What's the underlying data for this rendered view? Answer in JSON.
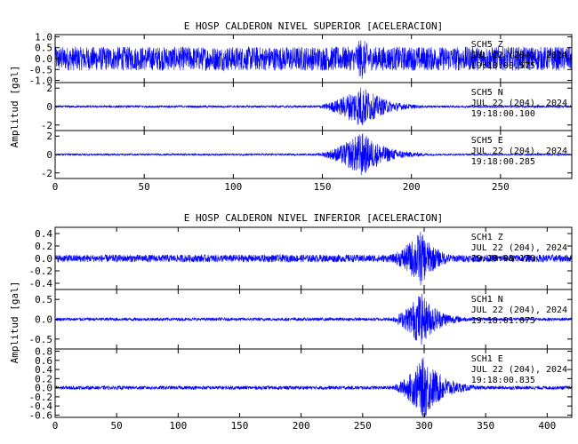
{
  "chart_data": [
    {
      "type": "line",
      "title": "E HOSP CALDERON NIVEL SUPERIOR [ACELERACION]",
      "ylabel": "Amplitud [gal]",
      "xlim": [
        0,
        290
      ],
      "x_ticks": [
        0,
        50,
        100,
        150,
        200,
        250
      ],
      "trace_color": "#0000ff",
      "panels": [
        {
          "channel": "SCH5  Z",
          "date": "JUL 22 (204), 2024",
          "time": "19:18:00.575",
          "ylim": [
            -1.1,
            1.1
          ],
          "y_ticks": [
            "1.0",
            "0.5",
            "0.0",
            "-0.5",
            "-1.0"
          ],
          "y_tick_values": [
            1.0,
            0.5,
            0.0,
            -0.5,
            -1.0
          ],
          "noise_amp": 0.55,
          "burst": {
            "start": 155,
            "peak": 172,
            "end": 230,
            "peak_amp": 1.0
          }
        },
        {
          "channel": "SCH5  N",
          "date": "JUL 22 (204), 2024",
          "time": "19:18:00.100",
          "ylim": [
            -2.6,
            2.6
          ],
          "y_ticks": [
            "2",
            "0",
            "-2"
          ],
          "y_tick_values": [
            2,
            0,
            -2
          ],
          "noise_amp": 0.12,
          "burst": {
            "start": 140,
            "peak": 172,
            "end": 250,
            "peak_amp": 2.4
          }
        },
        {
          "channel": "SCH5  E",
          "date": "JUL 22 (204), 2024",
          "time": "19:18:00.285",
          "ylim": [
            -2.6,
            2.6
          ],
          "y_ticks": [
            "2",
            "0",
            "-2"
          ],
          "y_tick_values": [
            2,
            0,
            -2
          ],
          "noise_amp": 0.1,
          "burst": {
            "start": 140,
            "peak": 172,
            "end": 255,
            "peak_amp": 2.5
          }
        }
      ]
    },
    {
      "type": "line",
      "title": "E HOSP CALDERON NIVEL INFERIOR [ACELERACION]",
      "ylabel": "Amplitud [gal]",
      "xlim": [
        0,
        420
      ],
      "x_ticks": [
        0,
        50,
        100,
        150,
        200,
        250,
        300,
        350,
        400
      ],
      "trace_color": "#0000ff",
      "panels": [
        {
          "channel": "SCH1  Z",
          "date": "JUL 22 (204), 2024",
          "time": "19:18:00.170",
          "ylim": [
            -0.5,
            0.5
          ],
          "y_ticks": [
            "0.4",
            "0.2",
            "0.0",
            "-0.2",
            "-0.4"
          ],
          "y_tick_values": [
            0.4,
            0.2,
            0.0,
            -0.2,
            -0.4
          ],
          "noise_amp": 0.06,
          "burst": {
            "start": 260,
            "peak": 297,
            "end": 380,
            "peak_amp": 0.45
          }
        },
        {
          "channel": "SCH1  N",
          "date": "JUL 22 (204), 2024",
          "time": "19:18:01.075",
          "ylim": [
            -0.75,
            0.75
          ],
          "y_ticks": [
            "0.5",
            "0.0",
            "-0.5"
          ],
          "y_tick_values": [
            0.5,
            0.0,
            -0.5
          ],
          "noise_amp": 0.04,
          "burst": {
            "start": 265,
            "peak": 297,
            "end": 390,
            "peak_amp": 0.7
          }
        },
        {
          "channel": "SCH1  E",
          "date": "JUL 22 (204), 2024",
          "time": "19:18:00.835",
          "ylim": [
            -0.65,
            0.85
          ],
          "y_ticks": [
            "0.8",
            "0.6",
            "0.4",
            "0.2",
            "0.0",
            "-0.2",
            "-0.4",
            "-0.6"
          ],
          "y_tick_values": [
            0.8,
            0.6,
            0.4,
            0.2,
            0.0,
            -0.2,
            -0.4,
            -0.6
          ],
          "noise_amp": 0.04,
          "burst": {
            "start": 265,
            "peak": 300,
            "end": 400,
            "peak_amp": 0.7
          }
        }
      ]
    }
  ]
}
